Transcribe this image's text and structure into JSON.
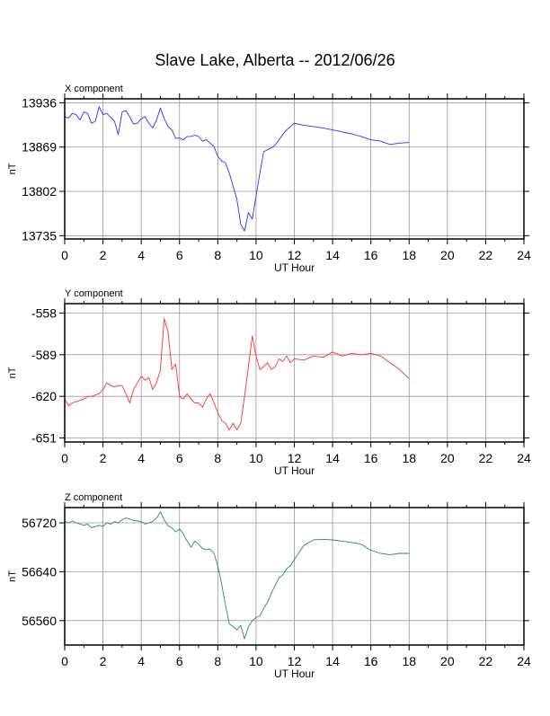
{
  "title": "Slave Lake, Alberta -- 2012/06/26",
  "chart_data": [
    {
      "type": "line",
      "title": "X component",
      "xlabel": "UT Hour",
      "ylabel": "nT",
      "xlim": [
        0,
        24
      ],
      "ylim": [
        13730,
        13942
      ],
      "xticks": [
        "0",
        "2",
        "4",
        "6",
        "8",
        "10",
        "12",
        "14",
        "16",
        "18",
        "20",
        "22",
        "24"
      ],
      "yticks": [
        "13735",
        "13802",
        "13869",
        "13936"
      ],
      "grid": true,
      "series": [
        {
          "color": "#3030ff",
          "x": [
            0,
            0.2,
            0.4,
            0.6,
            0.8,
            1.0,
            1.2,
            1.4,
            1.6,
            1.8,
            2.0,
            2.2,
            2.4,
            2.6,
            2.8,
            3.0,
            3.2,
            3.4,
            3.6,
            3.8,
            4.0,
            4.2,
            4.4,
            4.6,
            4.8,
            5.0,
            5.2,
            5.4,
            5.6,
            5.8,
            6.0,
            6.2,
            6.4,
            6.6,
            6.8,
            7.0,
            7.2,
            7.4,
            7.6,
            7.8,
            8.0,
            8.2,
            8.4,
            8.6,
            8.8,
            9.0,
            9.2,
            9.4,
            9.6,
            9.8,
            10.0,
            10.2,
            10.4,
            10.6,
            10.8,
            11.0,
            11.2,
            11.4,
            11.6,
            11.8,
            12.0,
            12.5,
            13.0,
            13.5,
            14.0,
            14.5,
            15.0,
            15.5,
            16.0,
            16.5,
            17.0,
            17.5,
            18.0
          ],
          "y": [
            13915,
            13913,
            13920,
            13918,
            13910,
            13922,
            13920,
            13905,
            13908,
            13930,
            13918,
            13920,
            13914,
            13908,
            13888,
            13922,
            13924,
            13915,
            13904,
            13905,
            13912,
            13915,
            13905,
            13898,
            13910,
            13928,
            13912,
            13900,
            13895,
            13882,
            13883,
            13880,
            13885,
            13885,
            13887,
            13885,
            13878,
            13880,
            13875,
            13870,
            13855,
            13848,
            13845,
            13830,
            13810,
            13790,
            13752,
            13742,
            13770,
            13760,
            13795,
            13830,
            13862,
            13865,
            13868,
            13872,
            13880,
            13888,
            13895,
            13900,
            13905,
            13902,
            13900,
            13898,
            13895,
            13892,
            13889,
            13885,
            13880,
            13878,
            13873,
            13875,
            13876
          ]
        }
      ]
    },
    {
      "type": "line",
      "title": "Y component",
      "xlabel": "UT Hour",
      "ylabel": "nT",
      "xlim": [
        0,
        24
      ],
      "ylim": [
        -654,
        -551
      ],
      "xticks": [
        "0",
        "2",
        "4",
        "6",
        "8",
        "10",
        "12",
        "14",
        "16",
        "18",
        "20",
        "22",
        "24"
      ],
      "yticks": [
        "-558",
        "-589",
        "-620",
        "-651"
      ],
      "grid": true,
      "series": [
        {
          "color": "#ff3030",
          "x": [
            0,
            0.2,
            0.4,
            0.6,
            0.8,
            1.0,
            1.2,
            1.4,
            1.6,
            1.8,
            2.0,
            2.2,
            2.4,
            2.6,
            2.8,
            3.0,
            3.2,
            3.4,
            3.6,
            3.8,
            4.0,
            4.2,
            4.4,
            4.6,
            4.8,
            5.0,
            5.2,
            5.4,
            5.6,
            5.8,
            6.0,
            6.2,
            6.4,
            6.6,
            6.8,
            7.0,
            7.2,
            7.4,
            7.6,
            7.8,
            8.0,
            8.2,
            8.4,
            8.6,
            8.8,
            9.0,
            9.2,
            9.4,
            9.6,
            9.8,
            10.0,
            10.2,
            10.4,
            10.6,
            10.8,
            11.0,
            11.2,
            11.4,
            11.6,
            11.8,
            12.0,
            12.5,
            13.0,
            13.5,
            14.0,
            14.5,
            15.0,
            15.5,
            16.0,
            16.5,
            17.0,
            17.5,
            18.0
          ],
          "y": [
            -622,
            -627,
            -625,
            -624,
            -623,
            -622,
            -620,
            -620,
            -619,
            -618,
            -615,
            -610,
            -612,
            -613,
            -612,
            -612,
            -618,
            -625,
            -615,
            -610,
            -605,
            -608,
            -606,
            -615,
            -610,
            -600,
            -562,
            -572,
            -600,
            -596,
            -620,
            -622,
            -618,
            -622,
            -625,
            -625,
            -628,
            -622,
            -618,
            -625,
            -632,
            -638,
            -640,
            -645,
            -640,
            -645,
            -640,
            -620,
            -598,
            -575,
            -590,
            -600,
            -598,
            -595,
            -600,
            -598,
            -592,
            -594,
            -590,
            -595,
            -592,
            -593,
            -590,
            -591,
            -587,
            -590,
            -588,
            -589,
            -588,
            -590,
            -595,
            -600,
            -607
          ]
        }
      ]
    },
    {
      "type": "line",
      "title": "Z component",
      "xlabel": "UT Hour",
      "ylabel": "nT",
      "xlim": [
        0,
        24
      ],
      "ylim": [
        56520,
        56745
      ],
      "xticks": [
        "0",
        "2",
        "4",
        "6",
        "8",
        "10",
        "12",
        "14",
        "16",
        "18",
        "20",
        "22",
        "24"
      ],
      "yticks": [
        "56560",
        "56640",
        "56720"
      ],
      "grid": true,
      "series": [
        {
          "color": "#2e8b57",
          "x": [
            0,
            0.2,
            0.4,
            0.6,
            0.8,
            1.0,
            1.2,
            1.4,
            1.6,
            1.8,
            2.0,
            2.2,
            2.4,
            2.6,
            2.8,
            3.0,
            3.2,
            3.4,
            3.6,
            3.8,
            4.0,
            4.2,
            4.4,
            4.6,
            4.8,
            5.0,
            5.2,
            5.4,
            5.6,
            5.8,
            6.0,
            6.2,
            6.4,
            6.6,
            6.8,
            7.0,
            7.2,
            7.4,
            7.6,
            7.8,
            8.0,
            8.2,
            8.4,
            8.6,
            8.8,
            9.0,
            9.2,
            9.4,
            9.6,
            9.8,
            10.0,
            10.2,
            10.4,
            10.6,
            10.8,
            11.0,
            11.2,
            11.4,
            11.6,
            11.8,
            12.0,
            12.5,
            13.0,
            13.5,
            14.0,
            14.5,
            15.0,
            15.5,
            16.0,
            16.5,
            17.0,
            17.5,
            18.0
          ],
          "y": [
            56722,
            56720,
            56723,
            56720,
            56718,
            56716,
            56718,
            56712,
            56714,
            56716,
            56714,
            56720,
            56718,
            56722,
            56720,
            56725,
            56728,
            56726,
            56724,
            56723,
            56722,
            56718,
            56720,
            56722,
            56728,
            56738,
            56725,
            56715,
            56712,
            56705,
            56710,
            56702,
            56690,
            56680,
            56690,
            56685,
            56678,
            56676,
            56677,
            56670,
            56650,
            56620,
            56585,
            56555,
            56550,
            56545,
            56552,
            56530,
            56550,
            56560,
            56565,
            56568,
            56580,
            56590,
            56605,
            56618,
            56630,
            56635,
            56645,
            56650,
            56660,
            56683,
            56692,
            56693,
            56692,
            56690,
            56688,
            56685,
            56675,
            56670,
            56668,
            56670,
            56670
          ]
        }
      ]
    }
  ]
}
